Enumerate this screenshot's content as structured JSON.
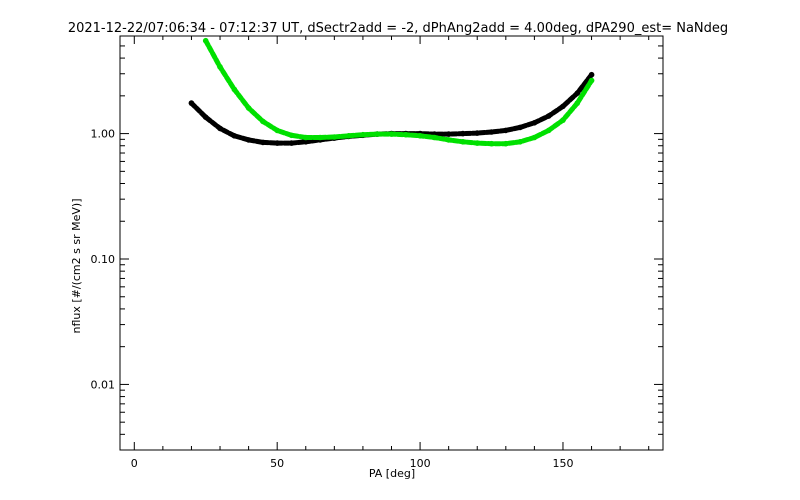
{
  "chart_data": {
    "type": "scatter",
    "title": "2021-12-22/07:06:34 - 07:12:37 UT, dSectr2add = -2, dPhAng2add = 4.00deg, dPA290_est=   NaNdeg",
    "xlabel": "PA [deg]",
    "ylabel": "nflux [#/(cm2 s sr MeV)]",
    "xlim": [
      -5,
      185
    ],
    "ylim": [
      0.003,
      6.0
    ],
    "yscale": "log",
    "x_ticks": [
      0,
      50,
      100,
      150
    ],
    "x_tick_labels": [
      "0",
      "50",
      "100",
      "150"
    ],
    "y_ticks": [
      0.01,
      0.1,
      1.0
    ],
    "y_tick_labels": [
      "0.01",
      "0.10",
      "1.00"
    ],
    "grid": false,
    "series": [
      {
        "color": "#000000",
        "x": [
          20,
          25,
          30,
          35,
          40,
          45,
          50,
          55,
          60,
          65,
          70,
          75,
          80,
          85,
          90,
          95,
          100,
          105,
          110,
          115,
          120,
          125,
          130,
          135,
          140,
          145,
          150,
          155,
          160
        ],
        "y": [
          1.75,
          1.35,
          1.1,
          0.96,
          0.89,
          0.85,
          0.84,
          0.84,
          0.86,
          0.89,
          0.92,
          0.95,
          0.97,
          0.99,
          1.0,
          1.0,
          1.0,
          0.99,
          0.99,
          1.0,
          1.01,
          1.03,
          1.06,
          1.12,
          1.22,
          1.38,
          1.65,
          2.1,
          2.95
        ]
      },
      {
        "color": "#00e000",
        "x": [
          25,
          30,
          35,
          40,
          45,
          50,
          55,
          60,
          65,
          70,
          75,
          80,
          85,
          90,
          95,
          100,
          105,
          110,
          115,
          120,
          125,
          130,
          135,
          140,
          145,
          150,
          155,
          160
        ],
        "y": [
          5.5,
          3.4,
          2.25,
          1.6,
          1.25,
          1.06,
          0.97,
          0.93,
          0.93,
          0.94,
          0.96,
          0.98,
          0.99,
          0.99,
          0.98,
          0.96,
          0.93,
          0.89,
          0.86,
          0.84,
          0.83,
          0.83,
          0.86,
          0.93,
          1.06,
          1.28,
          1.75,
          2.65
        ]
      }
    ]
  }
}
